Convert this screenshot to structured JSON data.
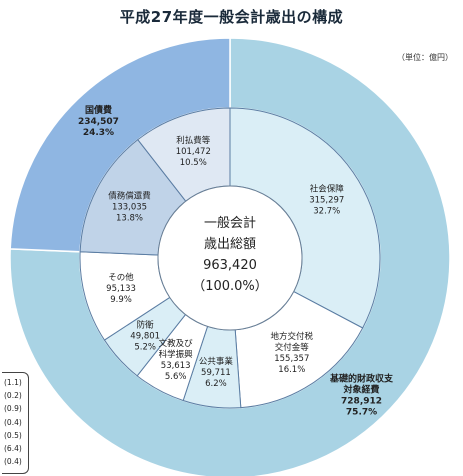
{
  "chart_data": {
    "type": "pie",
    "title": "平成27年度一般会計歳出の構成",
    "unit": "（単位：億円）",
    "center": {
      "line1": "一般会計",
      "line2": "歳出総額",
      "line3": "963,420",
      "line4": "（100.0%）"
    },
    "outer_ring": [
      {
        "name": "基礎的財政収支対象経費",
        "name_line1": "基礎的財政収支",
        "name_line2": "対象経費",
        "value_text": "728,912",
        "pct_text": "75.7%",
        "value": 728912,
        "color": "#a9d3e4"
      },
      {
        "name": "国債費",
        "name_line1": "国債費",
        "name_line2": "",
        "value_text": "234,507",
        "pct_text": "24.3%",
        "value": 234507,
        "color": "#8fb6e2"
      }
    ],
    "inner_ring": [
      {
        "name": "社会保障",
        "value_text": "315,297",
        "pct_text": "32.7%",
        "value": 315297,
        "color": "#daeef6",
        "group": 0
      },
      {
        "name_line1": "地方交付税",
        "name_line2": "交付金等",
        "value_text": "155,357",
        "pct_text": "16.1%",
        "value": 155357,
        "color": "#ffffff",
        "group": 0
      },
      {
        "name": "公共事業",
        "value_text": "59,711",
        "pct_text": "6.2%",
        "value": 59711,
        "color": "#daeef6",
        "group": 0
      },
      {
        "name_line1": "文教及び",
        "name_line2": "科学振興",
        "value_text": "53,613",
        "pct_text": "5.6%",
        "value": 53613,
        "color": "#ffffff",
        "group": 0
      },
      {
        "name": "防衛",
        "value_text": "49,801",
        "pct_text": "5.2%",
        "value": 49801,
        "color": "#daeef6",
        "group": 0
      },
      {
        "name": "その他",
        "value_text": "95,133",
        "pct_text": "9.9%",
        "value": 95133,
        "color": "#ffffff",
        "group": 0
      },
      {
        "name": "債務償還費",
        "value_text": "133,035",
        "pct_text": "13.8%",
        "value": 133035,
        "color": "#c0d3e8",
        "group": 1
      },
      {
        "name": "利払費等",
        "value_text": "101,472",
        "pct_text": "10.5%",
        "value": 101472,
        "color": "#dfe8f3",
        "group": 1
      }
    ],
    "side_list": [
      "(1.1)",
      "(0.2)",
      "(0.9)",
      "(0.4)",
      "(0.5)",
      "(6.4)",
      "(0.4)"
    ]
  }
}
